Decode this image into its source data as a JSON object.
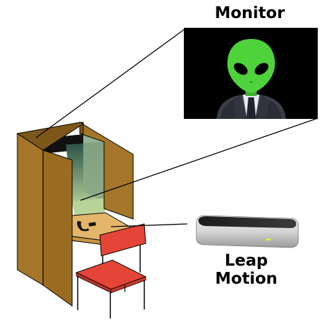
{
  "labels": {
    "monitor": "Monitor",
    "leap_line1": "Leap",
    "leap_line2": "Motion"
  },
  "colors": {
    "booth_wood": "#a5762a",
    "booth_wood_dark": "#7d5719",
    "booth_inner": "#8ba886",
    "screen_glow": "#b8d49a",
    "desk": "#e3b66b",
    "chair_red": "#e44536",
    "alien_green": "#4ed33b",
    "monitor_bg": "#000000"
  },
  "icons": {
    "alien": "alien-head-icon",
    "telephone": "telephone-icon",
    "leap_device": "leap-motion-device"
  }
}
